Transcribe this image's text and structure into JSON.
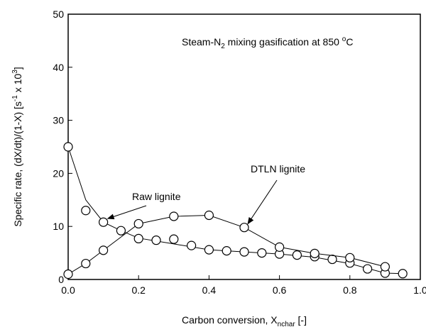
{
  "chart_data": {
    "type": "scatter",
    "xlabel": {
      "pre": "Carbon conversion, X",
      "sub": "nchar",
      "post": " [-]"
    },
    "ylabel": {
      "pre": "Specific rate, (dX/dt)/(1-X) [s",
      "sup1": "-1",
      "mid": " x 10",
      "sup2": "3",
      "post": "]"
    },
    "xlim": [
      0.0,
      1.0
    ],
    "ylim": [
      0,
      50
    ],
    "x_ticks": [
      "0.0",
      "0.2",
      "0.4",
      "0.6",
      "0.8",
      "1.0"
    ],
    "y_ticks": [
      "0",
      "10",
      "20",
      "30",
      "40",
      "50"
    ],
    "grid": false,
    "annotation_box": {
      "pre": "Steam-N",
      "sub": "2",
      "mid": " mixing gasification at 850 ",
      "sup": "o",
      "post": "C"
    },
    "series": [
      {
        "name": "Raw lignite",
        "line": [
          [
            0.0,
            25.0
          ],
          [
            0.05,
            15.0
          ],
          [
            0.1,
            10.8
          ],
          [
            0.15,
            9.2
          ],
          [
            0.2,
            7.8
          ],
          [
            0.3,
            6.7
          ],
          [
            0.4,
            5.6
          ],
          [
            0.5,
            5.2
          ],
          [
            0.6,
            4.8
          ],
          [
            0.7,
            4.2
          ],
          [
            0.8,
            3.0
          ],
          [
            0.9,
            1.2
          ],
          [
            0.95,
            1.1
          ]
        ],
        "markers": [
          [
            0.0,
            25.0
          ],
          [
            0.05,
            13.0
          ],
          [
            0.1,
            10.8
          ],
          [
            0.15,
            9.2
          ],
          [
            0.2,
            7.7
          ],
          [
            0.25,
            7.4
          ],
          [
            0.3,
            7.6
          ],
          [
            0.35,
            6.4
          ],
          [
            0.4,
            5.6
          ],
          [
            0.45,
            5.4
          ],
          [
            0.5,
            5.2
          ],
          [
            0.55,
            5.0
          ],
          [
            0.6,
            4.8
          ],
          [
            0.65,
            4.6
          ],
          [
            0.7,
            4.3
          ],
          [
            0.75,
            3.8
          ],
          [
            0.8,
            3.1
          ],
          [
            0.85,
            2.0
          ],
          [
            0.9,
            1.2
          ],
          [
            0.95,
            1.1
          ]
        ]
      },
      {
        "name": "DTLN lignite",
        "line": [
          [
            0.0,
            1.0
          ],
          [
            0.05,
            3.0
          ],
          [
            0.1,
            5.5
          ],
          [
            0.2,
            10.5
          ],
          [
            0.3,
            11.9
          ],
          [
            0.4,
            12.1
          ],
          [
            0.5,
            9.8
          ],
          [
            0.6,
            6.1
          ],
          [
            0.7,
            4.9
          ],
          [
            0.8,
            4.1
          ],
          [
            0.9,
            2.4
          ]
        ],
        "markers": [
          [
            0.0,
            1.0
          ],
          [
            0.05,
            3.0
          ],
          [
            0.1,
            5.5
          ],
          [
            0.2,
            10.5
          ],
          [
            0.3,
            11.9
          ],
          [
            0.4,
            12.1
          ],
          [
            0.5,
            9.8
          ],
          [
            0.6,
            6.1
          ],
          [
            0.7,
            4.9
          ],
          [
            0.8,
            4.1
          ],
          [
            0.9,
            2.4
          ]
        ]
      }
    ],
    "labels": [
      {
        "text": "Raw lignite",
        "target": [
          0.1,
          10.8
        ]
      },
      {
        "text": "DTLN lignite",
        "target": [
          0.5,
          9.8
        ]
      }
    ]
  }
}
